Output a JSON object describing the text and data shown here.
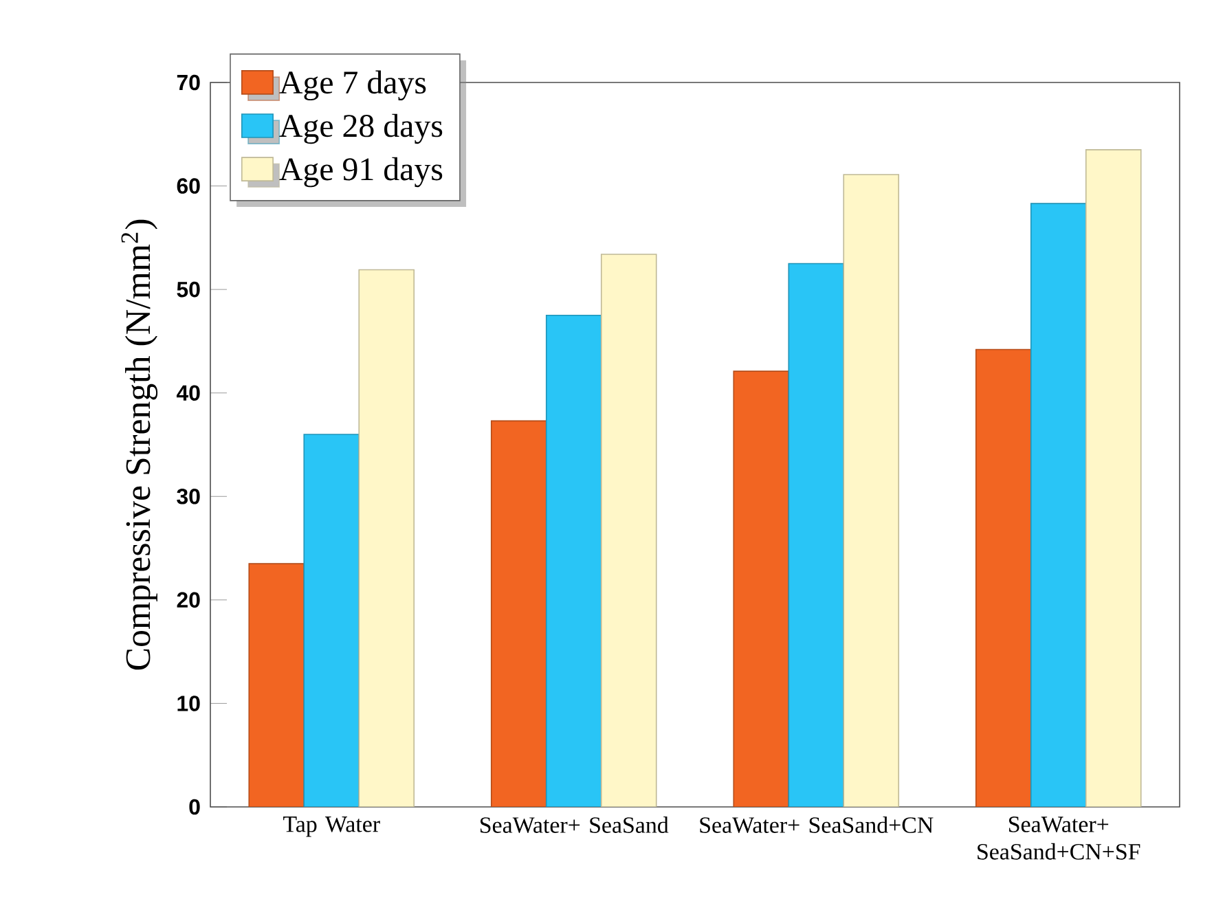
{
  "chart_data": {
    "type": "bar",
    "ylabel": "Compressive Strength (N/mm$^{2}$)",
    "categories": [
      "Tap Water",
      "SeaWater+ SeaSand",
      "SeaWater+ SeaSand+CN",
      "SeaWater+ SeaSand+CN+SF"
    ],
    "series": [
      {
        "name": "Age 7 days",
        "color": "#f26522",
        "values": [
          23.5,
          37.3,
          42.1,
          44.2
        ]
      },
      {
        "name": "Age 28 days",
        "color": "#29c5f6",
        "values": [
          36.0,
          47.5,
          52.5,
          58.3
        ]
      },
      {
        "name": "Age 91 days",
        "color": "#fff7c8",
        "values": [
          51.9,
          53.4,
          61.1,
          63.5
        ]
      }
    ],
    "ylim": [
      0,
      70
    ],
    "yticks": [
      0,
      10,
      20,
      30,
      40,
      50,
      60,
      70
    ],
    "legend": "top left",
    "grid": false
  }
}
